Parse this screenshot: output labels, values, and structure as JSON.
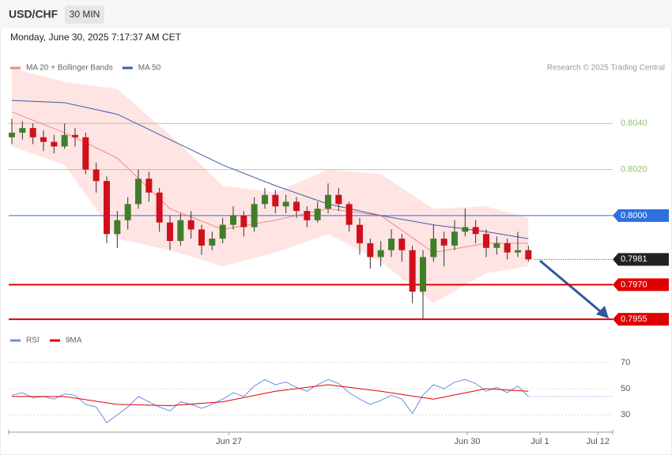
{
  "chart_data": {
    "type": "candlestick",
    "title": "USD/CHF",
    "timeframe": "30 MIN",
    "subtitle": "Monday, June 30, 2025 7:17:37 AM CET",
    "source": "Research © 2025 Trading Central",
    "up_color": "#3f7f2a",
    "down_color": "#d0101a",
    "candles": [
      [
        0.8034,
        0.8042,
        0.8031,
        0.8036
      ],
      [
        0.8036,
        0.8041,
        0.8033,
        0.8038
      ],
      [
        0.8038,
        0.804,
        0.8031,
        0.8034
      ],
      [
        0.8034,
        0.8037,
        0.8028,
        0.8032
      ],
      [
        0.8032,
        0.8035,
        0.8027,
        0.803
      ],
      [
        0.803,
        0.804,
        0.8029,
        0.8035
      ],
      [
        0.8035,
        0.8038,
        0.803,
        0.8034
      ],
      [
        0.8034,
        0.8036,
        0.8018,
        0.802
      ],
      [
        0.802,
        0.8023,
        0.801,
        0.8015
      ],
      [
        0.8015,
        0.8017,
        0.7988,
        0.7992
      ],
      [
        0.7992,
        0.8002,
        0.7986,
        0.7998
      ],
      [
        0.7998,
        0.8008,
        0.7994,
        0.8005
      ],
      [
        0.8005,
        0.802,
        0.8003,
        0.8016
      ],
      [
        0.8016,
        0.8019,
        0.8006,
        0.801
      ],
      [
        0.801,
        0.8012,
        0.7993,
        0.7997
      ],
      [
        0.7997,
        0.8,
        0.7985,
        0.7989
      ],
      [
        0.7989,
        0.8001,
        0.7987,
        0.7998
      ],
      [
        0.7998,
        0.8002,
        0.799,
        0.7994
      ],
      [
        0.7994,
        0.7996,
        0.7983,
        0.7987
      ],
      [
        0.7987,
        0.7993,
        0.7985,
        0.799
      ],
      [
        0.799,
        0.7999,
        0.7988,
        0.7996
      ],
      [
        0.7996,
        0.8004,
        0.7994,
        0.8
      ],
      [
        0.8,
        0.8002,
        0.7991,
        0.7995
      ],
      [
        0.7995,
        0.8008,
        0.7993,
        0.8005
      ],
      [
        0.8005,
        0.8012,
        0.8003,
        0.8009
      ],
      [
        0.8009,
        0.8011,
        0.8001,
        0.8004
      ],
      [
        0.8004,
        0.8009,
        0.8001,
        0.8006
      ],
      [
        0.8006,
        0.8008,
        0.7999,
        0.8002
      ],
      [
        0.8002,
        0.8004,
        0.7995,
        0.7998
      ],
      [
        0.7998,
        0.8006,
        0.7997,
        0.8003
      ],
      [
        0.8003,
        0.8014,
        0.8001,
        0.8009
      ],
      [
        0.8009,
        0.8012,
        0.8002,
        0.8005
      ],
      [
        0.8005,
        0.8006,
        0.7993,
        0.7996
      ],
      [
        0.7996,
        0.7999,
        0.7983,
        0.7988
      ],
      [
        0.7988,
        0.799,
        0.7977,
        0.7982
      ],
      [
        0.7982,
        0.7989,
        0.7978,
        0.7985
      ],
      [
        0.7985,
        0.7994,
        0.7982,
        0.799
      ],
      [
        0.799,
        0.7992,
        0.798,
        0.7985
      ],
      [
        0.7985,
        0.7987,
        0.7962,
        0.7967
      ],
      [
        0.7967,
        0.7985,
        0.7955,
        0.7982
      ],
      [
        0.7982,
        0.7996,
        0.798,
        0.799
      ],
      [
        0.799,
        0.7993,
        0.7978,
        0.7987
      ],
      [
        0.7987,
        0.7998,
        0.7985,
        0.7993
      ],
      [
        0.7993,
        0.8003,
        0.7991,
        0.7995
      ],
      [
        0.7995,
        0.7998,
        0.7988,
        0.7992
      ],
      [
        0.7992,
        0.7994,
        0.7982,
        0.7986
      ],
      [
        0.7986,
        0.7991,
        0.7983,
        0.7988
      ],
      [
        0.7988,
        0.799,
        0.7981,
        0.7984
      ],
      [
        0.7984,
        0.7993,
        0.7982,
        0.7985
      ],
      [
        0.7985,
        0.7987,
        0.798,
        0.7981
      ]
    ],
    "xlim": [
      -0.3,
      57
    ],
    "xticks": [
      {
        "value": 20.6,
        "label": "Jun 27"
      },
      {
        "value": 43.2,
        "label": "Jun 30"
      },
      {
        "value": 50.1,
        "label": "Jul 1"
      },
      {
        "value": 55.6,
        "label": "Jul 12"
      }
    ],
    "ylim": [
      0.7953,
      0.8061
    ],
    "series": [
      {
        "name": "MA 20 + Bollinger Bands",
        "color": "#f08a80",
        "band_color": "#ffd9d9",
        "x": [
          0,
          5,
          10,
          15,
          20,
          25,
          30,
          35,
          40,
          45,
          49
        ],
        "values": [
          0.8045,
          0.8036,
          0.8025,
          0.8003,
          0.7994,
          0.7998,
          0.8003,
          0.8,
          0.7984,
          0.7988,
          0.7988
        ],
        "upper": [
          0.8064,
          0.8058,
          0.8055,
          0.8035,
          0.8013,
          0.801,
          0.802,
          0.8018,
          0.8003,
          0.8004,
          0.7999
        ],
        "lower": [
          0.803,
          0.8022,
          0.799,
          0.7985,
          0.7978,
          0.7984,
          0.7992,
          0.798,
          0.7962,
          0.7975,
          0.7978
        ]
      },
      {
        "name": "MA 50",
        "color": "#3a5fa6",
        "x": [
          0,
          5,
          10,
          15,
          20,
          25,
          30,
          35,
          40,
          45,
          49
        ],
        "values": [
          0.805,
          0.8049,
          0.8044,
          0.8033,
          0.8022,
          0.8013,
          0.8005,
          0.8,
          0.7996,
          0.7993,
          0.799
        ]
      }
    ],
    "levels": [
      {
        "value": 0.804,
        "label": "0.8040",
        "color": "#8fc06a",
        "line": "solid",
        "line_width": 1,
        "boxed": false
      },
      {
        "value": 0.802,
        "label": "0.8020",
        "color": "#8fc06a",
        "line": "solid",
        "line_width": 1,
        "boxed": false
      },
      {
        "value": 0.8,
        "label": "0.8000",
        "color": "#2f6fe0",
        "line": "solid",
        "line_width": 1,
        "boxed": true
      },
      {
        "value": 0.7981,
        "label": "0.7981",
        "color": "#222222",
        "line": "dotted",
        "line_width": 1,
        "boxed": true
      },
      {
        "value": 0.797,
        "label": "0.7970",
        "color": "#e00000",
        "line": "solid",
        "line_width": 2,
        "boxed": true
      },
      {
        "value": 0.7955,
        "label": "0.7955",
        "color": "#e00000",
        "line": "solid",
        "line_width": 2,
        "boxed": true
      }
    ],
    "rsi": {
      "ylim": [
        21,
        79
      ],
      "yticks": [
        70,
        50,
        30
      ],
      "series": [
        {
          "name": "RSI",
          "color": "#6a8fe0",
          "values": [
            45,
            47,
            43,
            44,
            42,
            46,
            45,
            38,
            36,
            24,
            30,
            36,
            44,
            40,
            36,
            33,
            40,
            38,
            35,
            38,
            42,
            47,
            44,
            52,
            57,
            53,
            55,
            51,
            48,
            53,
            57,
            54,
            47,
            42,
            38,
            41,
            45,
            42,
            31,
            45,
            53,
            50,
            55,
            57,
            54,
            48,
            51,
            47,
            52,
            44
          ]
        },
        {
          "name": "9MA",
          "color": "#e00000",
          "x": [
            0,
            5,
            10,
            15,
            20,
            25,
            30,
            35,
            40,
            45,
            49
          ],
          "values": [
            44,
            44,
            38,
            37,
            40,
            48,
            53,
            48,
            42,
            50,
            48
          ]
        }
      ]
    }
  }
}
